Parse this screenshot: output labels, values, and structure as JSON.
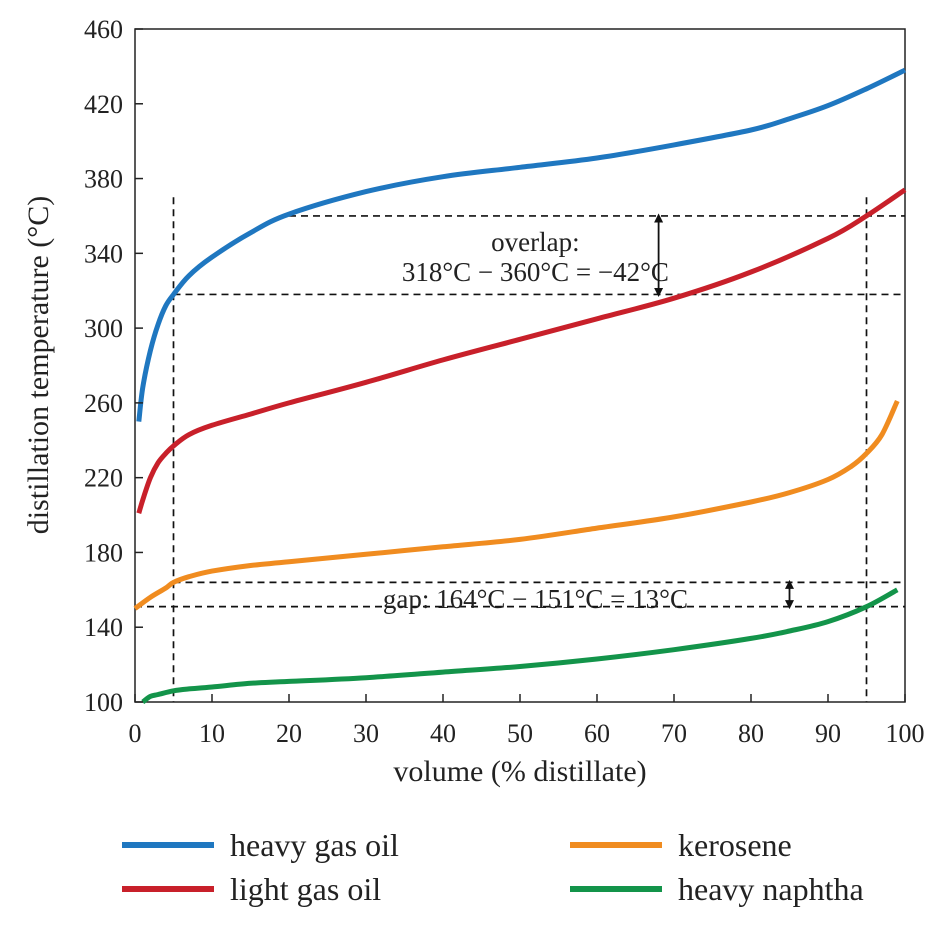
{
  "chart_data": {
    "type": "line",
    "xlabel": "volume (% distillate)",
    "ylabel": "distillation temperature (°C)",
    "xlim": [
      0,
      100
    ],
    "ylim": [
      100,
      460
    ],
    "x_ticks": [
      0,
      10,
      20,
      30,
      40,
      50,
      60,
      70,
      80,
      90,
      100
    ],
    "y_ticks": [
      100,
      140,
      180,
      220,
      260,
      300,
      340,
      380,
      420,
      460
    ],
    "grid": false,
    "legend_position": "bottom",
    "series": [
      {
        "name": "heavy gas oil",
        "color": "#1f77c0",
        "x": [
          0.5,
          1,
          2,
          3,
          4,
          5,
          7,
          10,
          15,
          20,
          30,
          40,
          50,
          60,
          70,
          80,
          85,
          90,
          95,
          100
        ],
        "y": [
          250,
          268,
          288,
          302,
          312,
          318,
          328,
          338,
          351,
          361,
          373,
          381,
          386,
          391,
          398,
          406,
          412,
          419,
          428,
          438
        ]
      },
      {
        "name": "light gas oil",
        "color": "#c8202a",
        "x": [
          0.5,
          1,
          2,
          3,
          4,
          5,
          7,
          10,
          15,
          20,
          30,
          40,
          50,
          60,
          70,
          80,
          90,
          95,
          100
        ],
        "y": [
          201,
          208,
          220,
          228,
          233,
          237,
          243,
          248,
          254,
          260,
          271,
          283,
          294,
          305,
          316,
          330,
          348,
          360,
          374
        ]
      },
      {
        "name": "kerosene",
        "color": "#f08c20",
        "x": [
          0,
          2,
          4,
          5,
          7,
          10,
          15,
          20,
          30,
          40,
          50,
          60,
          70,
          80,
          85,
          90,
          93,
          95,
          97,
          99
        ],
        "y": [
          150,
          156,
          161,
          164,
          167,
          170,
          173,
          175,
          179,
          183,
          187,
          193,
          199,
          207,
          212,
          219,
          226,
          233,
          243,
          261
        ]
      },
      {
        "name": "heavy naphtha",
        "color": "#13944a",
        "x": [
          1,
          2,
          3,
          5,
          7,
          10,
          15,
          20,
          30,
          40,
          50,
          60,
          70,
          80,
          85,
          90,
          95,
          99
        ],
        "y": [
          100,
          103,
          104,
          106,
          107,
          108,
          110,
          111,
          113,
          116,
          119,
          123,
          128,
          134,
          138,
          143,
          151,
          160
        ]
      }
    ],
    "reference_lines": {
      "vertical_x": [
        5,
        95
      ],
      "horizontal": [
        {
          "y": 360,
          "x_from": 20,
          "x_to": 100
        },
        {
          "y": 318,
          "x_from": 5,
          "x_to": 100
        },
        {
          "y": 164,
          "x_from": 5,
          "x_to": 100
        },
        {
          "y": 151,
          "x_from": 0,
          "x_to": 100
        }
      ]
    },
    "annotations": [
      {
        "id": "overlap_label",
        "text": "overlap:",
        "x": 52,
        "y": 346
      },
      {
        "id": "overlap_formula",
        "text": "318°C − 360°C = −42°C",
        "x": 52,
        "y": 330
      },
      {
        "id": "gap_formula",
        "text": "gap: 164°C − 151°C = 13°C",
        "x": 52,
        "y": 155
      }
    ],
    "arrows": [
      {
        "id": "overlap_arrow",
        "x": 68,
        "y_from": 318,
        "y_to": 360
      },
      {
        "id": "gap_arrow",
        "x": 85,
        "y_from": 151,
        "y_to": 164
      }
    ]
  }
}
